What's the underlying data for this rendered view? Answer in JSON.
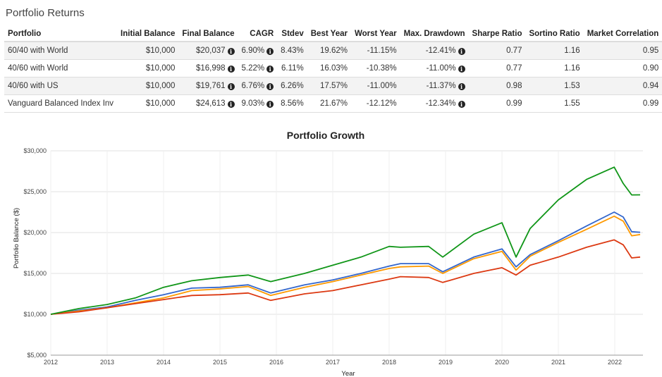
{
  "section_title": "Portfolio Returns",
  "table": {
    "headers": [
      "Portfolio",
      "Initial Balance",
      "Final Balance",
      "CAGR",
      "Stdev",
      "Best Year",
      "Worst Year",
      "Max. Drawdown",
      "Sharpe Ratio",
      "Sortino Ratio",
      "Market Correlation"
    ],
    "rows": [
      {
        "portfolio": "60/40 with World",
        "initial": "$10,000",
        "final": "$20,037",
        "cagr": "6.90%",
        "stdev": "8.43%",
        "best": "19.62%",
        "worst": "-11.15%",
        "drawdown": "-12.41%",
        "sharpe": "0.77",
        "sortino": "1.16",
        "corr": "0.95"
      },
      {
        "portfolio": "40/60 with World",
        "initial": "$10,000",
        "final": "$16,998",
        "cagr": "5.22%",
        "stdev": "6.11%",
        "best": "16.03%",
        "worst": "-10.38%",
        "drawdown": "-11.00%",
        "sharpe": "0.77",
        "sortino": "1.16",
        "corr": "0.90"
      },
      {
        "portfolio": "40/60 with US",
        "initial": "$10,000",
        "final": "$19,761",
        "cagr": "6.76%",
        "stdev": "6.26%",
        "best": "17.57%",
        "worst": "-11.00%",
        "drawdown": "-11.37%",
        "sharpe": "0.98",
        "sortino": "1.53",
        "corr": "0.94"
      },
      {
        "portfolio": "Vanguard Balanced Index Inv",
        "initial": "$10,000",
        "final": "$24,613",
        "cagr": "9.03%",
        "stdev": "8.56%",
        "best": "21.67%",
        "worst": "-12.12%",
        "drawdown": "-12.34%",
        "sharpe": "0.99",
        "sortino": "1.55",
        "corr": "0.99"
      }
    ],
    "info_icon": "info-circle-icon"
  },
  "chart_data": {
    "type": "line",
    "title": "Portfolio Growth",
    "xlabel": "Year",
    "ylabel": "Portfolio Balance ($)",
    "xlim": [
      2012,
      2022.5
    ],
    "ylim": [
      5000,
      30000
    ],
    "x_ticks": [
      2012,
      2013,
      2014,
      2015,
      2016,
      2017,
      2018,
      2019,
      2020,
      2021,
      2022
    ],
    "y_ticks": [
      5000,
      10000,
      15000,
      20000,
      25000,
      30000
    ],
    "y_tick_labels": [
      "$5,000",
      "$10,000",
      "$15,000",
      "$20,000",
      "$25,000",
      "$30,000"
    ],
    "grid": true,
    "series": [
      {
        "color": "#3366cc",
        "points": [
          [
            2012,
            10000
          ],
          [
            2012.5,
            10500
          ],
          [
            2013,
            10900
          ],
          [
            2013.5,
            11700
          ],
          [
            2014,
            12400
          ],
          [
            2014.5,
            13200
          ],
          [
            2015,
            13300
          ],
          [
            2015.5,
            13600
          ],
          [
            2015.9,
            12600
          ],
          [
            2016.5,
            13600
          ],
          [
            2017,
            14200
          ],
          [
            2017.5,
            15000
          ],
          [
            2018,
            15900
          ],
          [
            2018.2,
            16200
          ],
          [
            2018.7,
            16200
          ],
          [
            2018.95,
            15200
          ],
          [
            2019.5,
            17000
          ],
          [
            2020,
            18000
          ],
          [
            2020.25,
            15800
          ],
          [
            2020.5,
            17300
          ],
          [
            2021,
            19000
          ],
          [
            2021.5,
            20800
          ],
          [
            2021.99,
            22500
          ],
          [
            2022.15,
            21900
          ],
          [
            2022.3,
            20100
          ],
          [
            2022.45,
            20037
          ]
        ]
      },
      {
        "color": "#ff9900",
        "points": [
          [
            2012,
            10000
          ],
          [
            2012.5,
            10400
          ],
          [
            2013,
            10800
          ],
          [
            2013.5,
            11400
          ],
          [
            2014,
            12000
          ],
          [
            2014.5,
            12900
          ],
          [
            2015,
            13100
          ],
          [
            2015.5,
            13400
          ],
          [
            2015.9,
            12300
          ],
          [
            2016.5,
            13300
          ],
          [
            2017,
            14000
          ],
          [
            2017.5,
            14800
          ],
          [
            2018,
            15600
          ],
          [
            2018.2,
            15800
          ],
          [
            2018.7,
            15900
          ],
          [
            2018.95,
            15000
          ],
          [
            2019.5,
            16800
          ],
          [
            2020,
            17700
          ],
          [
            2020.25,
            15400
          ],
          [
            2020.5,
            17100
          ],
          [
            2021,
            18800
          ],
          [
            2021.5,
            20400
          ],
          [
            2021.99,
            22000
          ],
          [
            2022.15,
            21400
          ],
          [
            2022.3,
            19600
          ],
          [
            2022.45,
            19761
          ]
        ]
      },
      {
        "color": "#dc3912",
        "points": [
          [
            2012,
            10000
          ],
          [
            2012.5,
            10300
          ],
          [
            2013,
            10800
          ],
          [
            2013.5,
            11300
          ],
          [
            2014,
            11800
          ],
          [
            2014.5,
            12300
          ],
          [
            2015,
            12400
          ],
          [
            2015.5,
            12600
          ],
          [
            2015.9,
            11700
          ],
          [
            2016.5,
            12500
          ],
          [
            2017,
            12900
          ],
          [
            2017.5,
            13600
          ],
          [
            2018,
            14300
          ],
          [
            2018.2,
            14600
          ],
          [
            2018.7,
            14500
          ],
          [
            2018.95,
            13900
          ],
          [
            2019.5,
            15000
          ],
          [
            2020,
            15700
          ],
          [
            2020.25,
            14800
          ],
          [
            2020.5,
            16000
          ],
          [
            2021,
            17000
          ],
          [
            2021.5,
            18200
          ],
          [
            2021.99,
            19100
          ],
          [
            2022.15,
            18500
          ],
          [
            2022.3,
            16900
          ],
          [
            2022.45,
            16998
          ]
        ]
      },
      {
        "color": "#109618",
        "points": [
          [
            2012,
            10000
          ],
          [
            2012.5,
            10700
          ],
          [
            2013,
            11200
          ],
          [
            2013.5,
            12000
          ],
          [
            2014,
            13300
          ],
          [
            2014.5,
            14100
          ],
          [
            2015,
            14500
          ],
          [
            2015.5,
            14800
          ],
          [
            2015.9,
            14000
          ],
          [
            2016.5,
            15000
          ],
          [
            2017,
            16000
          ],
          [
            2017.5,
            17000
          ],
          [
            2018,
            18300
          ],
          [
            2018.2,
            18200
          ],
          [
            2018.7,
            18300
          ],
          [
            2018.95,
            17000
          ],
          [
            2019.5,
            19800
          ],
          [
            2020,
            21200
          ],
          [
            2020.25,
            17000
          ],
          [
            2020.5,
            20500
          ],
          [
            2021,
            24000
          ],
          [
            2021.5,
            26500
          ],
          [
            2021.99,
            28000
          ],
          [
            2022.15,
            26000
          ],
          [
            2022.3,
            24600
          ],
          [
            2022.45,
            24613
          ]
        ]
      }
    ]
  }
}
